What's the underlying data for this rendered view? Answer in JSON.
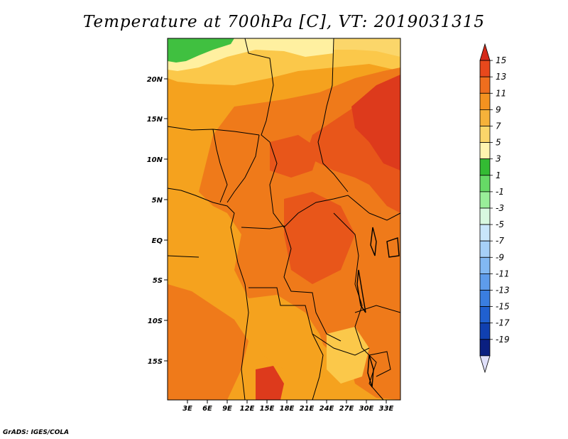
{
  "title": "Temperature at 700hPa [C], VT: 2019031315",
  "credit": "GrADS: IGES/COLA",
  "colors": {
    "frame": "#000000",
    "land_bg": "#f0a020",
    "green": "#40c040",
    "pale_yellow": "#fff0a0",
    "light_orange": "#fbc84a",
    "orange": "#f5a21e",
    "dark_orange": "#ef7a1a",
    "red_orange": "#e8561a",
    "red": "#dd3a1c"
  },
  "lat_labels": [
    "20N",
    "15N",
    "10N",
    "5N",
    "EQ",
    "5S",
    "10S",
    "15S"
  ],
  "lon_labels": [
    "3E",
    "6E",
    "9E",
    "12E",
    "15E",
    "18E",
    "21E",
    "24E",
    "27E",
    "30E",
    "33E"
  ],
  "colorbar": {
    "labels": [
      "15",
      "13",
      "11",
      "9",
      "7",
      "5",
      "3",
      "1",
      "-1",
      "-3",
      "-5",
      "-7",
      "-9",
      "-11",
      "-13",
      "-15",
      "-17",
      "-19"
    ],
    "colors": [
      "#d42a1a",
      "#e8481c",
      "#ef6e1e",
      "#f49220",
      "#f6b23a",
      "#fbd66a",
      "#fff4b0",
      "#33bb33",
      "#66d966",
      "#99ee99",
      "#d8f8e0",
      "#c8e6fb",
      "#a6d0f8",
      "#82b8f2",
      "#5e9ceb",
      "#3a7ee0",
      "#2060d0",
      "#1040b0",
      "#0a1f80",
      "#e0e0fa"
    ]
  }
}
